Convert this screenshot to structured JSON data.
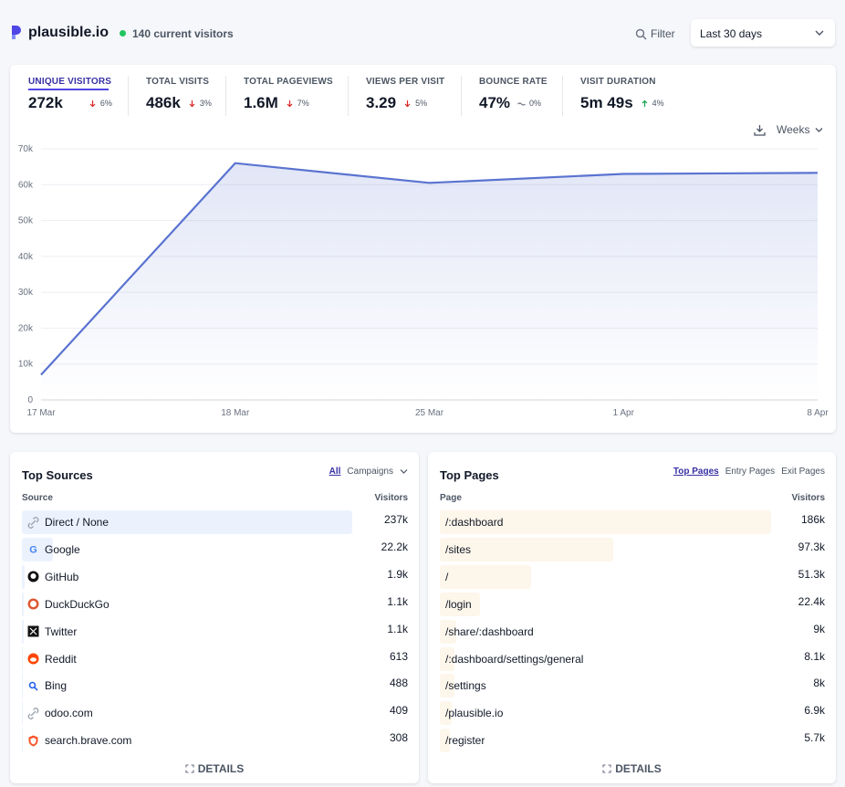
{
  "header": {
    "site": "plausible.io",
    "current_visitors": "140 current visitors",
    "filter": "Filter",
    "period": "Last 30 days"
  },
  "metrics": [
    {
      "label": "UNIQUE VISITORS",
      "value": "272k",
      "change": "6%"
    },
    {
      "label": "TOTAL VISITS",
      "value": "486k",
      "change": "3%"
    },
    {
      "label": "TOTAL PAGEVIEWS",
      "value": "1.6M",
      "change": "7%"
    },
    {
      "label": "VIEWS PER VISIT",
      "value": "3.29",
      "change": "5%"
    },
    {
      "label": "BOUNCE RATE",
      "value": "47%",
      "change": "0%"
    },
    {
      "label": "VISIT DURATION",
      "value": "5m 49s",
      "change": "4%"
    }
  ],
  "chart": {
    "type": "line",
    "interval": "Weeks",
    "color": "#5a73d0",
    "x": [
      "17 Mar",
      "18 Mar",
      "25 Mar",
      "1 Apr",
      "8 Apr"
    ],
    "values": [
      7000,
      66000,
      60500,
      63000,
      63300
    ],
    "ylim": [
      0,
      70000
    ],
    "yticks": [
      0,
      {
        "value": 10000,
        "label": "10k"
      },
      {
        "value": 20000,
        "label": "20k"
      },
      {
        "value": 30000,
        "label": "30k"
      },
      {
        "value": 40000,
        "label": "40k"
      },
      {
        "value": 50000,
        "label": "50k"
      },
      {
        "value": 60000,
        "label": "60k"
      },
      {
        "value": 70000,
        "label": "70k"
      }
    ],
    "grid": true
  },
  "sources": {
    "title": "Top Sources",
    "tabs": [
      "All",
      "Campaigns"
    ],
    "columns": [
      "Source",
      "Visitors"
    ],
    "rows": [
      {
        "name": "Direct / None",
        "visitors": {
          "value": 237000,
          "label": "237k"
        }
      },
      {
        "name": "Google",
        "visitors": {
          "value": 22200,
          "label": "22.2k"
        }
      },
      {
        "name": "GitHub",
        "visitors": {
          "value": 1900,
          "label": "1.9k"
        }
      },
      {
        "name": "DuckDuckGo",
        "visitors": {
          "value": 1100,
          "label": "1.1k"
        }
      },
      {
        "name": "Twitter",
        "visitors": {
          "value": 1100,
          "label": "1.1k"
        }
      },
      {
        "name": "Reddit",
        "visitors": 613
      },
      {
        "name": "Bing",
        "visitors": 488
      },
      {
        "name": "odoo.com",
        "visitors": 409
      },
      {
        "name": "search.brave.com",
        "visitors": 308
      }
    ],
    "details": "DETAILS"
  },
  "pages": {
    "title": "Top Pages",
    "tabs": [
      "Top Pages",
      "Entry Pages",
      "Exit Pages"
    ],
    "columns": [
      "Page",
      "Visitors"
    ],
    "rows": [
      {
        "name": "/:dashboard",
        "visitors": {
          "value": 186000,
          "label": "186k"
        }
      },
      {
        "name": "/sites",
        "visitors": {
          "value": 97300,
          "label": "97.3k"
        }
      },
      {
        "name": "/",
        "visitors": {
          "value": 51300,
          "label": "51.3k"
        }
      },
      {
        "name": "/login",
        "visitors": {
          "value": 22400,
          "label": "22.4k"
        }
      },
      {
        "name": "/share/:dashboard",
        "visitors": {
          "value": 9000,
          "label": "9k"
        }
      },
      {
        "name": "/:dashboard/settings/general",
        "visitors": {
          "value": 8100,
          "label": "8.1k"
        }
      },
      {
        "name": "/settings",
        "visitors": {
          "value": 8000,
          "label": "8k"
        }
      },
      {
        "name": "/plausible.io",
        "visitors": {
          "value": 6900,
          "label": "6.9k"
        }
      },
      {
        "name": "/register",
        "visitors": {
          "value": 5700,
          "label": "5.7k"
        }
      }
    ],
    "details": "DETAILS"
  }
}
